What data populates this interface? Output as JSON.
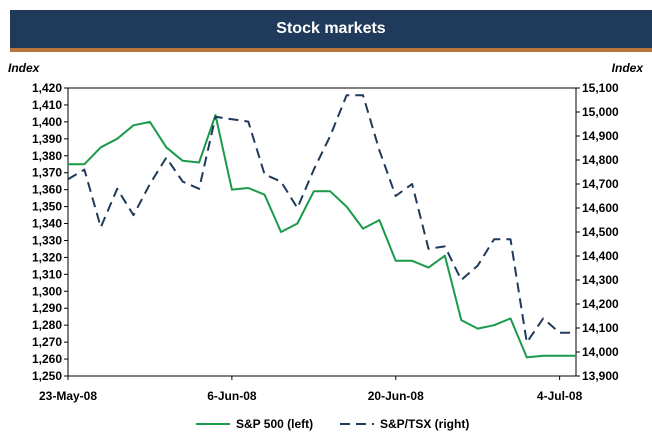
{
  "chart_data": {
    "type": "line",
    "title": "Stock markets",
    "left_axis_label": "Index",
    "right_axis_label": "Index",
    "x_tick_labels": [
      "23-May-08",
      "6-Jun-08",
      "20-Jun-08",
      "4-Jul-08"
    ],
    "x_tick_positions": [
      0,
      10,
      20,
      30
    ],
    "x_range": [
      0,
      31
    ],
    "ylim_left": [
      1250,
      1420
    ],
    "ylim_right": [
      13900,
      15100
    ],
    "yticks_left": [
      "1,250",
      "1,260",
      "1,270",
      "1,280",
      "1,290",
      "1,300",
      "1,310",
      "1,320",
      "1,330",
      "1,340",
      "1,350",
      "1,360",
      "1,370",
      "1,380",
      "1,390",
      "1,400",
      "1,410",
      "1,420"
    ],
    "yticks_right": [
      "13,900",
      "14,000",
      "14,100",
      "14,200",
      "14,300",
      "14,400",
      "14,500",
      "14,600",
      "14,700",
      "14,800",
      "14,900",
      "15,000",
      "15,100"
    ],
    "series": [
      {
        "name": "S&P 500 (left)",
        "axis": "left",
        "color": "#1a9a4a",
        "style": "solid",
        "x": [
          0,
          1,
          2,
          3,
          4,
          5,
          6,
          7,
          8,
          9,
          10,
          11,
          12,
          13,
          14,
          15,
          16,
          17,
          18,
          19,
          20,
          21,
          22,
          23,
          24,
          25,
          26,
          27,
          28,
          29,
          30,
          31
        ],
        "values": [
          1375,
          1375,
          1385,
          1390,
          1398,
          1400,
          1385,
          1377,
          1376,
          1404,
          1360,
          1361,
          1357,
          1335,
          1340,
          1359,
          1359,
          1350,
          1337,
          1342,
          1318,
          1318,
          1314,
          1321,
          1283,
          1278,
          1280,
          1284,
          1261,
          1262,
          1262,
          1262
        ]
      },
      {
        "name": "S&P/TSX (right)",
        "axis": "right",
        "color": "#1f3a5a",
        "style": "dashed",
        "x": [
          0,
          1,
          2,
          3,
          4,
          5,
          6,
          7,
          8,
          9,
          10,
          11,
          12,
          13,
          14,
          15,
          16,
          17,
          18,
          19,
          20,
          21,
          22,
          23,
          24,
          25,
          26,
          27,
          28,
          29,
          30,
          31
        ],
        "values": [
          14720,
          14760,
          14520,
          14680,
          14570,
          14700,
          14810,
          14710,
          14680,
          14980,
          14970,
          14960,
          14740,
          14710,
          14600,
          14760,
          14900,
          15070,
          15070,
          14840,
          14650,
          14700,
          14430,
          14440,
          14300,
          14360,
          14470,
          14470,
          14040,
          14140,
          14080,
          14080
        ]
      }
    ],
    "legend": {
      "position": "bottom",
      "entries": [
        "S&P 500 (left)",
        "S&P/TSX (right)"
      ]
    },
    "grid": false
  }
}
